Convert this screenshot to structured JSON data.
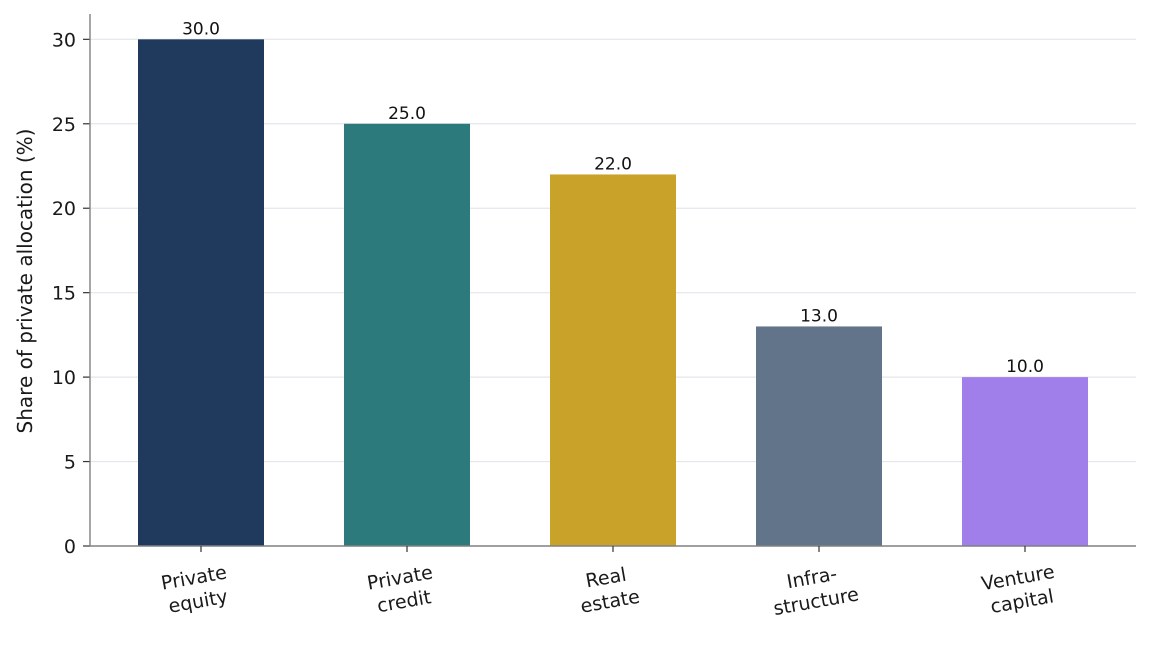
{
  "chart_data": {
    "type": "bar",
    "categories": [
      "Private\nequity",
      "Private\ncredit",
      "Real\nestate",
      "Infra-\nstructure",
      "Venture\ncapital"
    ],
    "values": [
      30.0,
      25.0,
      22.0,
      13.0,
      10.0
    ],
    "value_labels": [
      "30.0",
      "25.0",
      "22.0",
      "13.0",
      "10.0"
    ],
    "colors": [
      "#1f3a5c",
      "#2c7a7b",
      "#c9a22a",
      "#62748a",
      "#a07fea"
    ],
    "ylabel": "Share of private allocation (%)",
    "xlabel": "",
    "ylim": [
      0,
      31.5
    ],
    "yticks": [
      0,
      5,
      10,
      15,
      20,
      25,
      30
    ],
    "grid": "horizontal",
    "legend": "none"
  }
}
